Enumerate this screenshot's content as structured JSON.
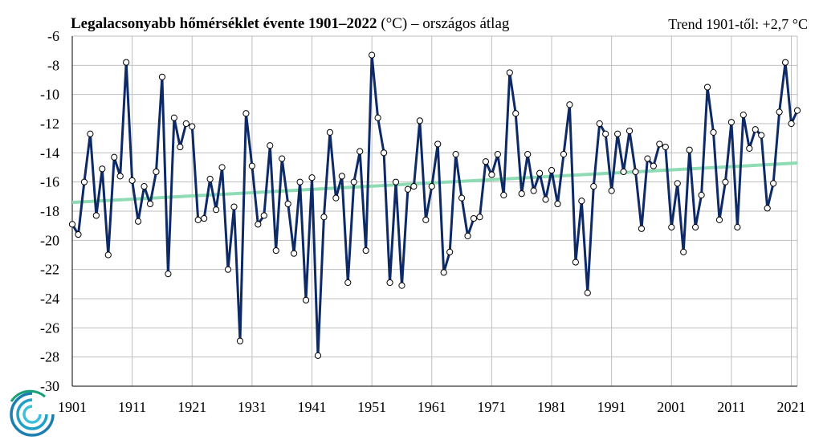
{
  "chart_data": {
    "type": "line",
    "title_bold": "Legalacsonyabb hőmérséklet évente 1901–2022",
    "title_rest": " (°C) – országos átlag",
    "trend_label": "Trend 1901-től: +2,7 °C",
    "xlabel": "",
    "ylabel": "",
    "ylim": [
      -30,
      -6
    ],
    "yticks": [
      -6,
      -8,
      -10,
      -12,
      -14,
      -16,
      -18,
      -20,
      -22,
      -24,
      -26,
      -28,
      -30
    ],
    "xlim": [
      1901,
      2022
    ],
    "xticks": [
      1901,
      1911,
      1921,
      1931,
      1941,
      1951,
      1961,
      1971,
      1981,
      1991,
      2001,
      2011,
      2021
    ],
    "grid": true,
    "colors": {
      "series": "#0d2a66",
      "trend": "#8fdcb4",
      "grid": "#bfbfbf"
    },
    "series": [
      {
        "x": [
          1901,
          1902,
          1903,
          1904,
          1905,
          1906,
          1907,
          1908,
          1909,
          1910,
          1911,
          1912,
          1913,
          1914,
          1915,
          1916,
          1917,
          1918,
          1919,
          1920,
          1921,
          1922,
          1923,
          1924,
          1925,
          1926,
          1927,
          1928,
          1929,
          1930,
          1931,
          1932,
          1933,
          1934,
          1935,
          1936,
          1937,
          1938,
          1939,
          1940,
          1941,
          1942,
          1943,
          1944,
          1945,
          1946,
          1947,
          1948,
          1949,
          1950,
          1951,
          1952,
          1953,
          1954,
          1955,
          1956,
          1957,
          1958,
          1959,
          1960,
          1961,
          1962,
          1963,
          1964,
          1965,
          1966,
          1967,
          1968,
          1969,
          1970,
          1971,
          1972,
          1973,
          1974,
          1975,
          1976,
          1977,
          1978,
          1979,
          1980,
          1981,
          1982,
          1983,
          1984,
          1985,
          1986,
          1987,
          1988,
          1989,
          1990,
          1991,
          1992,
          1993,
          1994,
          1995,
          1996,
          1997,
          1998,
          1999,
          2000,
          2001,
          2002,
          2003,
          2004,
          2005,
          2006,
          2007,
          2008,
          2009,
          2010,
          2011,
          2012,
          2013,
          2014,
          2015,
          2016,
          2017,
          2018,
          2019,
          2020,
          2021,
          2022
        ],
        "values": [
          -18.9,
          -19.6,
          -16.0,
          -12.7,
          -18.3,
          -15.1,
          -21.0,
          -14.3,
          -15.6,
          -7.8,
          -15.9,
          -18.7,
          -16.3,
          -17.5,
          -15.3,
          -8.8,
          -22.3,
          -11.6,
          -13.6,
          -12.0,
          -12.2,
          -18.6,
          -18.5,
          -15.8,
          -17.9,
          -15.0,
          -22.0,
          -17.7,
          -26.9,
          -11.3,
          -14.9,
          -18.9,
          -18.3,
          -13.5,
          -20.7,
          -14.4,
          -17.5,
          -20.9,
          -16.0,
          -24.1,
          -15.7,
          -27.9,
          -18.4,
          -12.6,
          -17.1,
          -15.6,
          -22.9,
          -16.0,
          -13.9,
          -20.7,
          -7.3,
          -11.6,
          -14.0,
          -22.9,
          -16.0,
          -23.1,
          -16.5,
          -16.3,
          -11.8,
          -18.6,
          -16.3,
          -13.4,
          -22.2,
          -20.8,
          -14.1,
          -17.1,
          -19.7,
          -18.5,
          -18.4,
          -14.6,
          -15.5,
          -14.1,
          -16.9,
          -8.5,
          -11.3,
          -16.8,
          -14.1,
          -16.6,
          -15.4,
          -17.2,
          -15.2,
          -17.5,
          -14.1,
          -10.7,
          -21.5,
          -17.3,
          -23.6,
          -16.3,
          -12.0,
          -12.7,
          -16.6,
          -12.7,
          -15.3,
          -12.5,
          -15.3,
          -19.2,
          -14.4,
          -14.9,
          -13.4,
          -13.6,
          -19.1,
          -16.1,
          -20.8,
          -13.8,
          -19.1,
          -16.9,
          -9.5,
          -12.6,
          -18.6,
          -16.0,
          -11.9,
          -19.1,
          -11.4,
          -13.7,
          -12.4,
          -12.8,
          -17.8,
          -16.1,
          -11.2,
          -7.8,
          -12.0,
          -11.1
        ]
      }
    ],
    "trend": {
      "start": [
        1901,
        -17.4
      ],
      "end": [
        2022,
        -14.7
      ]
    }
  }
}
